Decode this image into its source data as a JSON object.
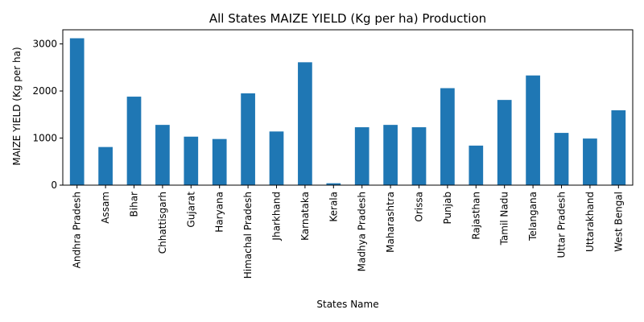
{
  "chart_data": {
    "type": "bar",
    "title": "All States MAIZE YIELD (Kg per ha) Production",
    "xlabel": "States Name",
    "ylabel": "MAIZE YIELD (Kg per ha)",
    "ylim": [
      0,
      3300
    ],
    "yticks": [
      0,
      1000,
      2000,
      3000
    ],
    "grid": false,
    "bar_color": "#1f77b4",
    "categories": [
      "Andhra Pradesh",
      "Assam",
      "Bihar",
      "Chhattisgarh",
      "Gujarat",
      "Haryana",
      "Himachal Pradesh",
      "Jharkhand",
      "Karnataka",
      "Kerala",
      "Madhya Pradesh",
      "Maharashtra",
      "Orissa",
      "Punjab",
      "Rajasthan",
      "Tamil Nadu",
      "Telangana",
      "Uttar Pradesh",
      "Uttarakhand",
      "West Bengal"
    ],
    "values": [
      3120,
      810,
      1880,
      1280,
      1030,
      980,
      1950,
      1140,
      2610,
      40,
      1230,
      1280,
      1230,
      2060,
      840,
      1810,
      2330,
      1110,
      990,
      1590
    ]
  }
}
